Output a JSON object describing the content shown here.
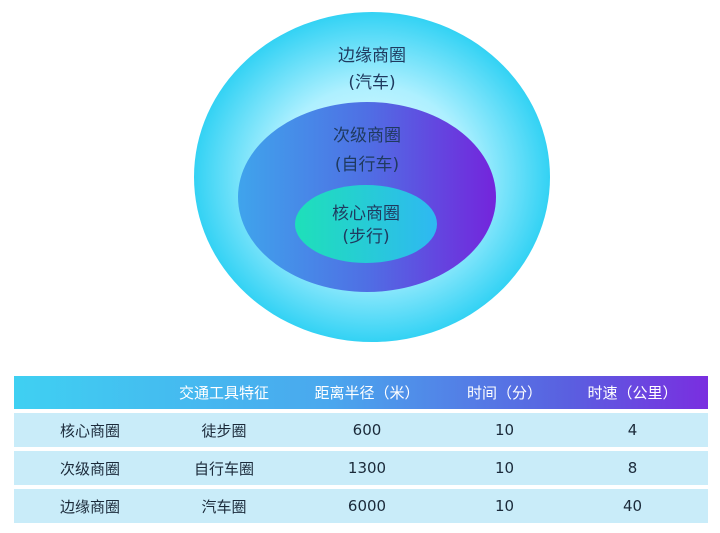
{
  "diagram": {
    "outer": {
      "label": "边缘商圈",
      "sub": "(汽车)"
    },
    "middle": {
      "label": "次级商圈",
      "sub": "(自行车)"
    },
    "inner": {
      "label": "核心商圈",
      "sub": "(步行)"
    },
    "colors": {
      "outer": "#3fd6f5",
      "middle": "#4f7be6",
      "inner": "#22d8c8"
    }
  },
  "table": {
    "headers": [
      "",
      "交通工具特征",
      "距离半径（米）",
      "时间（分）",
      "时速（公里）"
    ],
    "rows": [
      [
        "核心商圈",
        "徒步圈",
        "600",
        "10",
        "4"
      ],
      [
        "次级商圈",
        "自行车圈",
        "1300",
        "10",
        "8"
      ],
      [
        "边缘商圈",
        "汽车圈",
        "6000",
        "10",
        "40"
      ]
    ]
  }
}
